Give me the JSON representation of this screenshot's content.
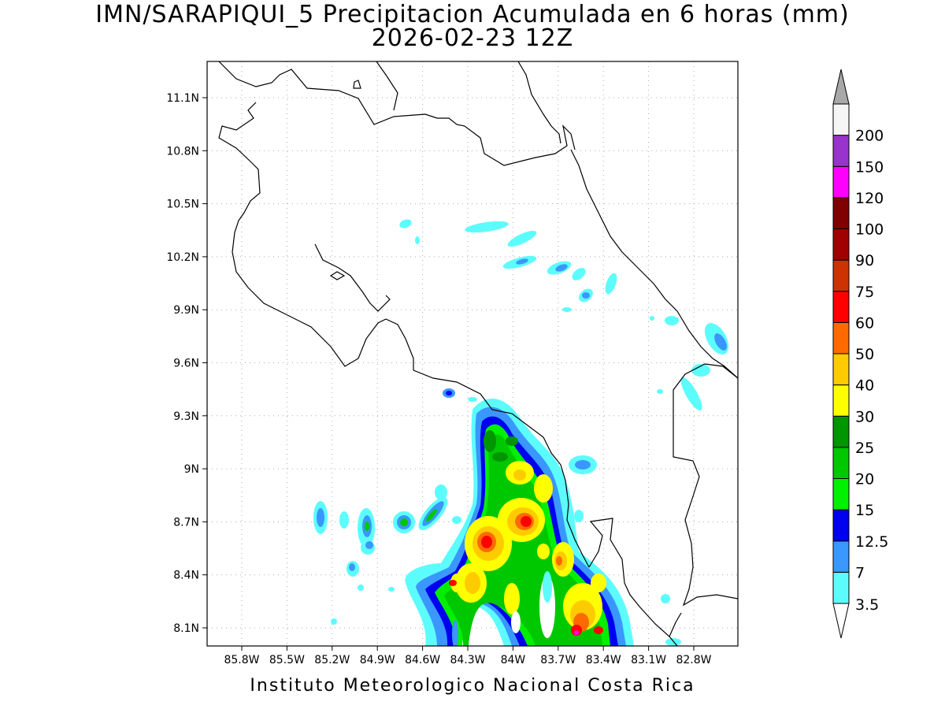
{
  "header": {
    "title_line1": "IMN/SARAPIQUI_5 Precipitacion Acumulada en 6 horas (mm)",
    "title_line2": "2026-02-23 12Z"
  },
  "map": {
    "lon_labels": [
      "85.8W",
      "85.5W",
      "85.2W",
      "84.9W",
      "84.6W",
      "84.3W",
      "84W",
      "83.7W",
      "83.4W",
      "83.1W",
      "82.8W"
    ],
    "lat_labels": [
      "11.1N",
      "10.8N",
      "10.5N",
      "10.2N",
      "9.9N",
      "9.6N",
      "9.3N",
      "9N",
      "8.7N",
      "8.4N",
      "8.1N"
    ]
  },
  "colorbar": {
    "levels": [
      {
        "label": "3.5",
        "color": "#5dfcfc"
      },
      {
        "label": "7",
        "color": "#3a97fd"
      },
      {
        "label": "12.5",
        "color": "#0000f0"
      },
      {
        "label": "15",
        "color": "#00f000"
      },
      {
        "label": "20",
        "color": "#00c800"
      },
      {
        "label": "25",
        "color": "#009600"
      },
      {
        "label": "30",
        "color": "#ffff00"
      },
      {
        "label": "40",
        "color": "#fecb00"
      },
      {
        "label": "50",
        "color": "#fe6a00"
      },
      {
        "label": "60",
        "color": "#fe0000"
      },
      {
        "label": "75",
        "color": "#cc3300"
      },
      {
        "label": "90",
        "color": "#a00000"
      },
      {
        "label": "100",
        "color": "#800000"
      },
      {
        "label": "120",
        "color": "#ff00ff"
      },
      {
        "label": "150",
        "color": "#9933cc"
      },
      {
        "label": "200",
        "color": "#f5f5f5"
      }
    ],
    "over_color": "#a8a8a8"
  },
  "footer": {
    "credit": "Instituto Meteorologico Nacional Costa Rica"
  }
}
